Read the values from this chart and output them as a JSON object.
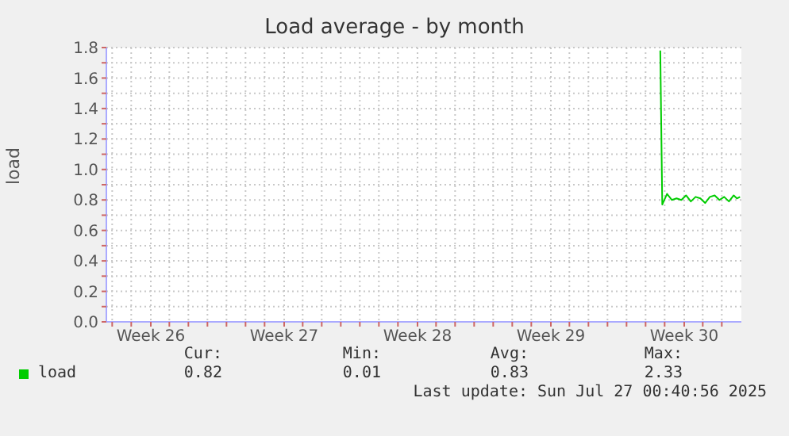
{
  "chart_data": {
    "type": "line",
    "title": "Load average - by month",
    "ylabel": "load",
    "x": [
      "2025-07-22T18:30",
      "2025-07-22T21:00",
      "2025-07-23T03:00",
      "2025-07-23T09:00",
      "2025-07-23T15:00",
      "2025-07-23T21:00",
      "2025-07-24T03:00",
      "2025-07-24T09:00",
      "2025-07-24T15:00",
      "2025-07-24T21:00",
      "2025-07-25T03:00",
      "2025-07-25T09:00",
      "2025-07-25T15:00",
      "2025-07-25T21:00",
      "2025-07-26T03:00",
      "2025-07-26T09:00",
      "2025-07-26T15:00",
      "2025-07-26T19:00",
      "2025-07-26T23:00"
    ],
    "series": [
      {
        "name": "load",
        "color": "#00cc00",
        "values": [
          1.78,
          0.77,
          0.84,
          0.8,
          0.81,
          0.8,
          0.83,
          0.79,
          0.82,
          0.81,
          0.78,
          0.82,
          0.83,
          0.8,
          0.82,
          0.79,
          0.83,
          0.81,
          0.82
        ]
      }
    ],
    "xlim": [
      "2025-06-23T16:40",
      "2025-07-27T00:40"
    ],
    "xticks": [
      {
        "value": "2025-06-24",
        "label": null
      },
      {
        "value": "2025-06-25",
        "label": null
      },
      {
        "value": "2025-06-26T00:40",
        "label": "Week 26"
      },
      {
        "value": "2025-06-27",
        "label": null
      },
      {
        "value": "2025-06-28",
        "label": null
      },
      {
        "value": "2025-06-29",
        "label": null
      },
      {
        "value": "2025-06-30",
        "label": null
      },
      {
        "value": "2025-07-01",
        "label": null
      },
      {
        "value": "2025-07-02",
        "label": null
      },
      {
        "value": "2025-07-03T00:40",
        "label": "Week 27"
      },
      {
        "value": "2025-07-04",
        "label": null
      },
      {
        "value": "2025-07-05",
        "label": null
      },
      {
        "value": "2025-07-06",
        "label": null
      },
      {
        "value": "2025-07-07",
        "label": null
      },
      {
        "value": "2025-07-08",
        "label": null
      },
      {
        "value": "2025-07-09",
        "label": null
      },
      {
        "value": "2025-07-10T00:40",
        "label": "Week 28"
      },
      {
        "value": "2025-07-11",
        "label": null
      },
      {
        "value": "2025-07-12",
        "label": null
      },
      {
        "value": "2025-07-13",
        "label": null
      },
      {
        "value": "2025-07-14",
        "label": null
      },
      {
        "value": "2025-07-15",
        "label": null
      },
      {
        "value": "2025-07-16",
        "label": null
      },
      {
        "value": "2025-07-17T00:40",
        "label": "Week 29"
      },
      {
        "value": "2025-07-18",
        "label": null
      },
      {
        "value": "2025-07-19",
        "label": null
      },
      {
        "value": "2025-07-20",
        "label": null
      },
      {
        "value": "2025-07-21",
        "label": null
      },
      {
        "value": "2025-07-22",
        "label": null
      },
      {
        "value": "2025-07-23",
        "label": null
      },
      {
        "value": "2025-07-24T00:40",
        "label": "Week 30"
      },
      {
        "value": "2025-07-25",
        "label": null
      },
      {
        "value": "2025-07-26",
        "label": null
      }
    ],
    "ylim": [
      0,
      1.8
    ],
    "yticks": [
      {
        "value": 0,
        "label": "0.0"
      },
      {
        "value": 0.1,
        "label": null
      },
      {
        "value": 0.2,
        "label": "0.2"
      },
      {
        "value": 0.3,
        "label": null
      },
      {
        "value": 0.4,
        "label": "0.4"
      },
      {
        "value": 0.5,
        "label": null
      },
      {
        "value": 0.6,
        "label": "0.6"
      },
      {
        "value": 0.7,
        "label": null
      },
      {
        "value": 0.8,
        "label": "0.8"
      },
      {
        "value": 0.9,
        "label": null
      },
      {
        "value": 1,
        "label": "1.0"
      },
      {
        "value": 1.1,
        "label": null
      },
      {
        "value": 1.2,
        "label": "1.2"
      },
      {
        "value": 1.3,
        "label": null
      },
      {
        "value": 1.4,
        "label": "1.4"
      },
      {
        "value": 1.5,
        "label": null
      },
      {
        "value": 1.6,
        "label": "1.6"
      },
      {
        "value": 1.7,
        "label": null
      },
      {
        "value": 1.8,
        "label": "1.8"
      }
    ],
    "grid": true,
    "legend": "bottom left",
    "annotations": [
      "Cur:",
      "Min:",
      "Avg:",
      "Max:",
      "0.82",
      "0.01",
      "0.83",
      "2.33",
      "Last update: Sun Jul 27 00:40:56 2025"
    ]
  }
}
